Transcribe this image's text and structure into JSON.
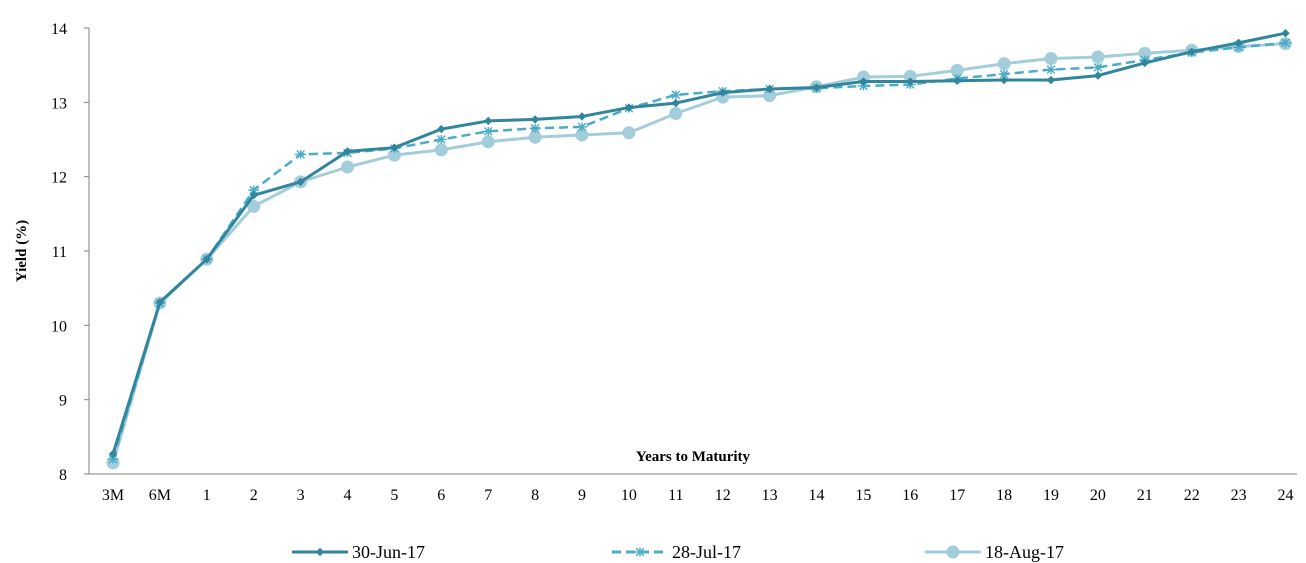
{
  "chart_data": {
    "type": "line",
    "title": "",
    "xlabel": "Years to Maturity",
    "ylabel": "Yield (%)",
    "ylim": [
      8,
      14
    ],
    "yticks": [
      8,
      9,
      10,
      11,
      12,
      13,
      14
    ],
    "grid": false,
    "legend_position": "bottom",
    "categories": [
      "3M",
      "6M",
      "1",
      "2",
      "3",
      "4",
      "5",
      "6",
      "7",
      "8",
      "9",
      "10",
      "11",
      "12",
      "13",
      "14",
      "15",
      "16",
      "17",
      "18",
      "19",
      "20",
      "21",
      "22",
      "23",
      "24"
    ],
    "series": [
      {
        "name": "30-Jun-17",
        "color": "#31859C",
        "marker": "diamond",
        "dash": "solid",
        "values": [
          8.27,
          10.31,
          10.89,
          11.75,
          11.93,
          12.34,
          12.39,
          12.64,
          12.75,
          12.77,
          12.81,
          12.93,
          12.99,
          13.13,
          13.18,
          13.2,
          13.28,
          13.28,
          13.29,
          13.3,
          13.3,
          13.36,
          13.53,
          13.68,
          13.8,
          13.93
        ]
      },
      {
        "name": "28-Jul-17",
        "color": "#4BACC6",
        "marker": "star",
        "dash": "dashed",
        "values": [
          8.2,
          10.3,
          10.89,
          11.82,
          12.3,
          12.32,
          12.38,
          12.5,
          12.61,
          12.65,
          12.67,
          12.92,
          13.1,
          13.15,
          13.18,
          13.19,
          13.22,
          13.24,
          13.32,
          13.38,
          13.44,
          13.47,
          13.57,
          13.67,
          13.74,
          13.8
        ]
      },
      {
        "name": "18-Aug-17",
        "color": "#A4CDDB",
        "marker": "circle",
        "dash": "solid",
        "values": [
          8.15,
          10.3,
          10.89,
          11.6,
          11.93,
          12.13,
          12.29,
          12.36,
          12.47,
          12.53,
          12.56,
          12.59,
          12.85,
          13.07,
          13.09,
          13.21,
          13.34,
          13.35,
          13.43,
          13.52,
          13.59,
          13.61,
          13.66,
          13.7,
          13.75,
          13.79
        ]
      }
    ]
  }
}
